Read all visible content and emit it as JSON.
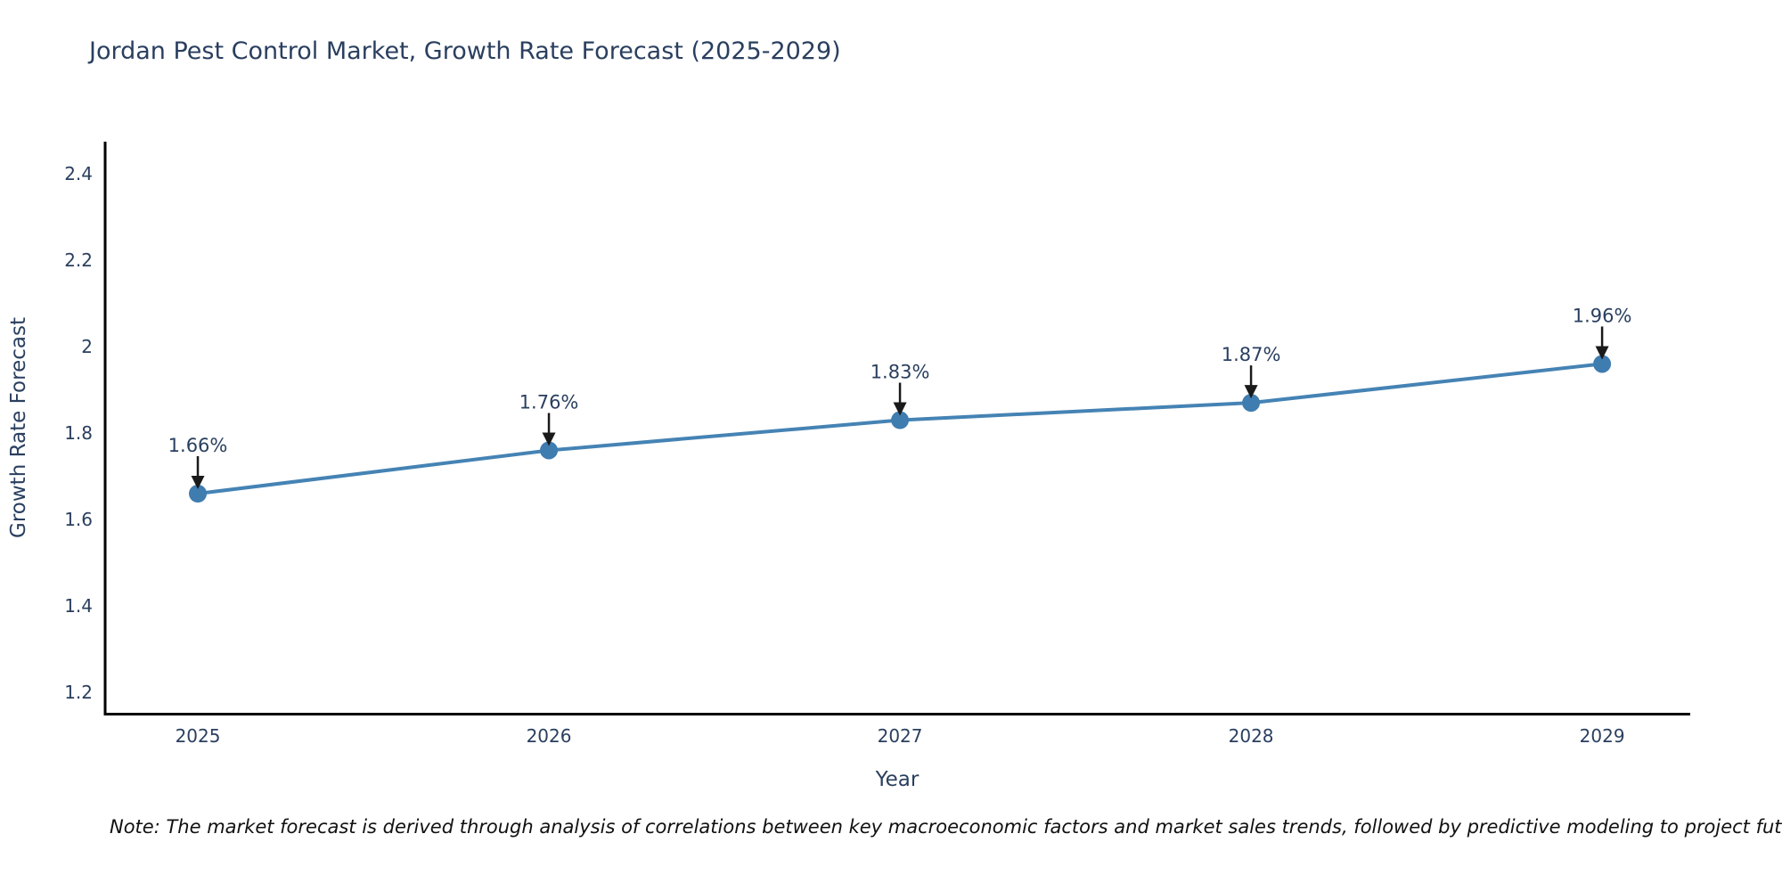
{
  "chart_data": {
    "type": "line",
    "title": "Jordan Pest Control Market, Growth Rate Forecast (2025-2029)",
    "xlabel": "Year",
    "ylabel": "Growth Rate Forecast",
    "x": [
      2025,
      2026,
      2027,
      2028,
      2029
    ],
    "series": [
      {
        "name": "Growth Rate Forecast",
        "values": [
          1.66,
          1.76,
          1.83,
          1.87,
          1.96
        ]
      }
    ],
    "point_labels": [
      "1.66%",
      "1.76%",
      "1.83%",
      "1.87%",
      "1.96%"
    ],
    "yticks": [
      1.2,
      1.4,
      1.6,
      1.8,
      2,
      2.2,
      2.4
    ],
    "ylim": [
      1.153,
      2.47
    ],
    "xlim": [
      2024.736,
      2029.251
    ],
    "grid": false,
    "legend": "none",
    "line_color": "#4583b4",
    "marker_color": "#3f7cb0",
    "arrow_color": "#1a1a1a",
    "note": "Note: The market forecast is derived through analysis of correlations between key macroeconomic factors and market sales trends, followed by predictive modeling to project future sales"
  }
}
